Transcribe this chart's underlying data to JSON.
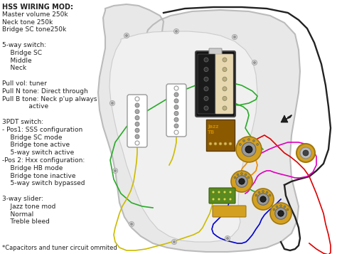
{
  "bg_color": "#ffffff",
  "left_text_lines": [
    [
      "HSS WIRING MOD:",
      true,
      7
    ],
    [
      "Master volume 250k",
      false,
      6.5
    ],
    [
      "Neck tone 250k",
      false,
      6.5
    ],
    [
      "Bridge SC tone250k",
      false,
      6.5
    ],
    [
      "",
      false,
      6.5
    ],
    [
      "5-way switch:",
      false,
      6.5
    ],
    [
      "    Bridge SC",
      false,
      6.5
    ],
    [
      "    Middle",
      false,
      6.5
    ],
    [
      "    Neck",
      false,
      6.5
    ],
    [
      "",
      false,
      6.5
    ],
    [
      "Pull vol: tuner",
      false,
      6.5
    ],
    [
      "Pull N tone: Direct through",
      false,
      6.5
    ],
    [
      "Pull B tone: Neck p'up always",
      false,
      6.5
    ],
    [
      "             active",
      false,
      6.5
    ],
    [
      "",
      false,
      6.5
    ],
    [
      "3PDT switch:",
      false,
      6.5
    ],
    [
      "- Pos1: SSS configuration",
      false,
      6.5
    ],
    [
      "    Bridge SC mode",
      false,
      6.5
    ],
    [
      "    Bridge tone active",
      false,
      6.5
    ],
    [
      "    5-way switch active",
      false,
      6.5
    ],
    [
      "-Pos 2: Hxx configuration:",
      false,
      6.5
    ],
    [
      "    Bridge HB mode",
      false,
      6.5
    ],
    [
      "    Bridge tone inactive",
      false,
      6.5
    ],
    [
      "    5-way switch bypassed",
      false,
      6.5
    ],
    [
      "",
      false,
      6.5
    ],
    [
      "3-way slider:",
      false,
      6.5
    ],
    [
      "    Jazz tone mod",
      false,
      6.5
    ],
    [
      "    Normal",
      false,
      6.5
    ],
    [
      "    Treble bleed",
      false,
      6.5
    ]
  ],
  "footer": "*Capacitors and tuner circuit ommited",
  "wire_colors": {
    "black": "#222222",
    "green": "#2aaa2a",
    "yellow": "#ccbb00",
    "red": "#dd0000",
    "blue": "#0000cc",
    "magenta": "#dd00bb",
    "orange": "#ee8800",
    "gray": "#aaaaaa"
  }
}
